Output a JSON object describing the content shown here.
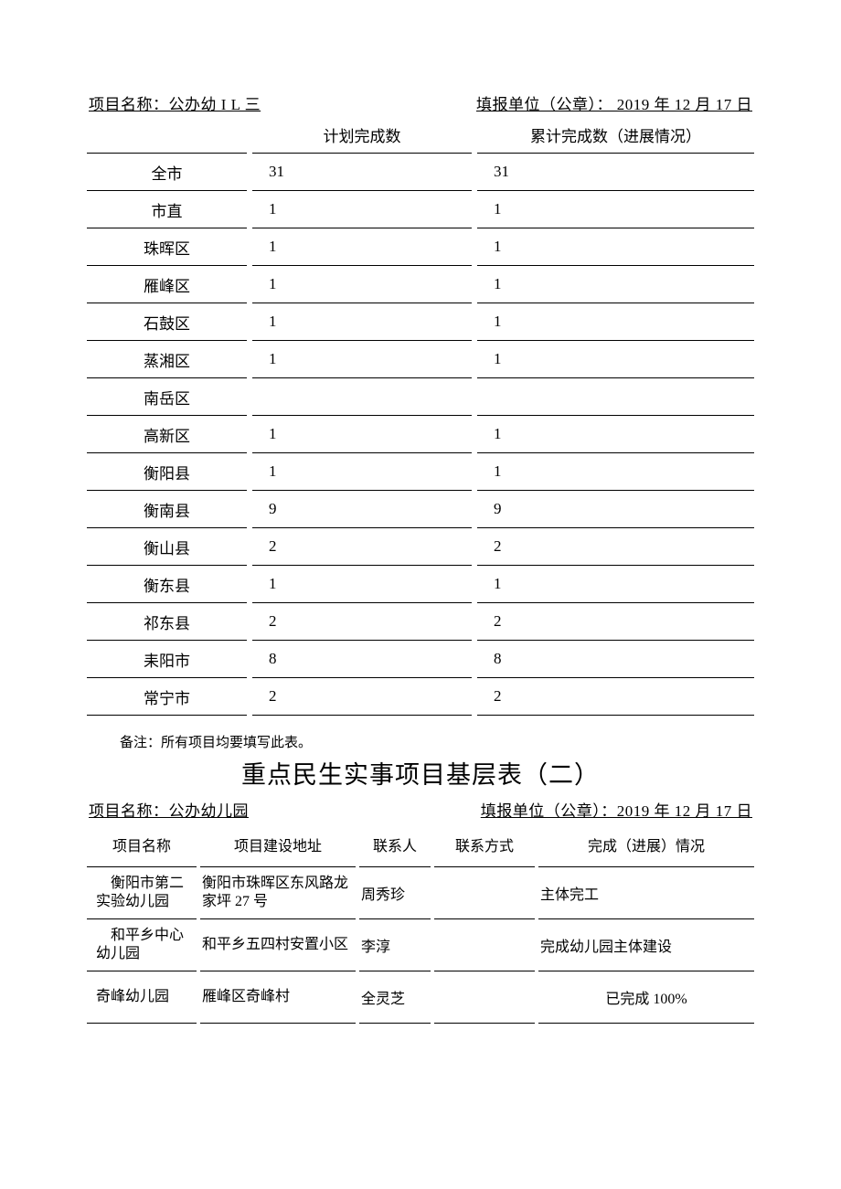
{
  "table1": {
    "header_left": "项目名称：公办幼 I  L 三",
    "header_right": "填报单位（公章）： 2019 年 12 月 17 日",
    "columns": {
      "col2": "计划完成数",
      "col3": "累计完成数（进展情况）"
    },
    "rows": [
      {
        "name": "全市",
        "plan": "31",
        "done": "31"
      },
      {
        "name": "市直",
        "plan": "1",
        "done": "1"
      },
      {
        "name": "珠晖区",
        "plan": "1",
        "done": "1"
      },
      {
        "name": "雁峰区",
        "plan": "1",
        "done": "1"
      },
      {
        "name": "石鼓区",
        "plan": "1",
        "done": "1"
      },
      {
        "name": "蒸湘区",
        "plan": "1",
        "done": "1"
      },
      {
        "name": "南岳区",
        "plan": "",
        "done": ""
      },
      {
        "name": "高新区",
        "plan": "1",
        "done": "1"
      },
      {
        "name": "衡阳县",
        "plan": "1",
        "done": "1"
      },
      {
        "name": "衡南县",
        "plan": "9",
        "done": "9"
      },
      {
        "name": "衡山县",
        "plan": "2",
        "done": "2"
      },
      {
        "name": "衡东县",
        "plan": "1",
        "done": "1"
      },
      {
        "name": "祁东县",
        "plan": "2",
        "done": "2"
      },
      {
        "name": "耒阳市",
        "plan": "8",
        "done": "8"
      },
      {
        "name": "常宁市",
        "plan": "2",
        "done": "2"
      }
    ]
  },
  "note": "备注：所有项目均要填写此表。",
  "title2": "重点民生实事项目基层表（二）",
  "table2": {
    "header_left": "项目名称：公办幼儿园",
    "header_right": "填报单位（公章）：2019 年 12 月 17 日",
    "columns": {
      "c1": "项目名称",
      "c2": "项目建设地址",
      "c3": "联系人",
      "c4": "联系方式",
      "c5": "完成（进展）情况"
    },
    "rows": [
      {
        "pname": "　衡阳市第二实验幼儿园",
        "addr": "衡阳市珠晖区东风路龙家坪 27 号",
        "person": "周秀珍",
        "contact": "",
        "status": "主体完工",
        "center": false
      },
      {
        "pname": "　和平乡中心幼儿园",
        "addr": "和平乡五四村安置小区",
        "person": "李淳",
        "contact": "",
        "status": "完成幼儿园主体建设",
        "center": false
      },
      {
        "pname": "奇峰幼儿园",
        "addr": "雁峰区奇峰村",
        "person": "全灵芝",
        "contact": "",
        "status": "已完成 100%",
        "center": true
      }
    ]
  }
}
